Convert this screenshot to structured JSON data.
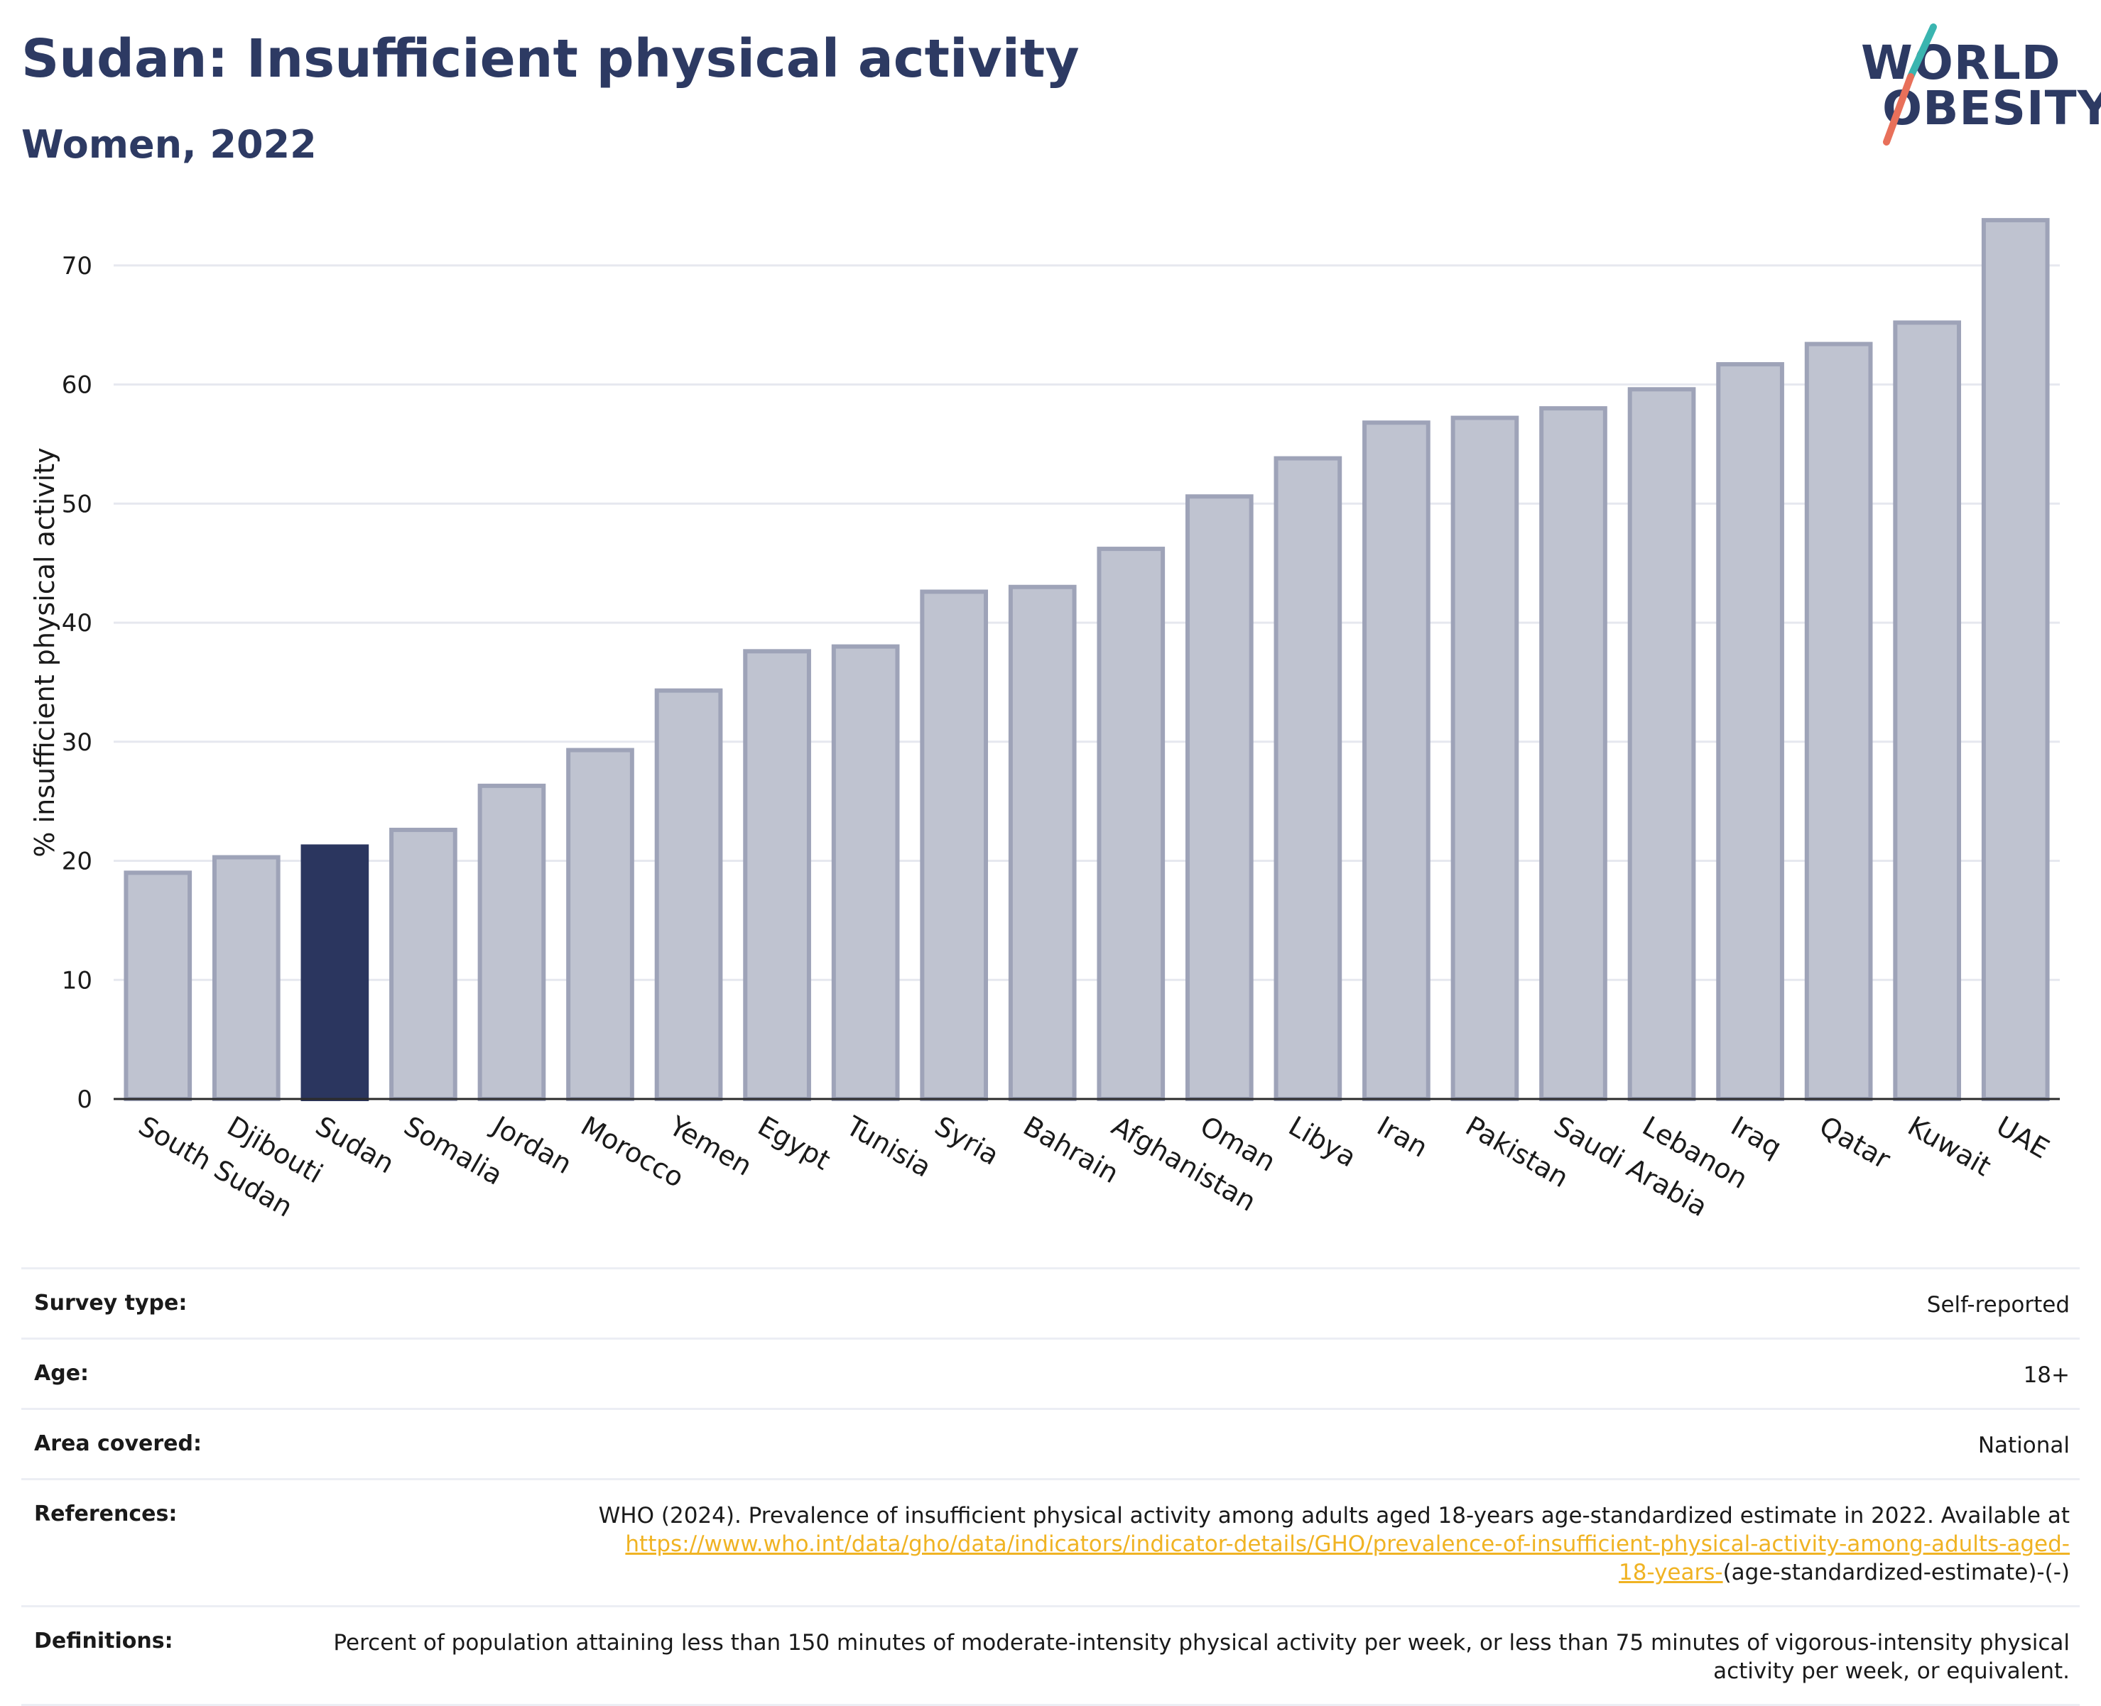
{
  "title": "Sudan: Insufficient physical activity",
  "subtitle": "Women, 2022",
  "logo": {
    "line1": "WORLD",
    "line2": "OBESITY"
  },
  "colors": {
    "highlight": "#2b365f",
    "bar": "#bfc3d0",
    "bar_border": "#9ea3b8",
    "accent_teal": "#3ab5b0",
    "accent_coral": "#e8705a",
    "link": "#f0b323"
  },
  "chart_data": {
    "type": "bar",
    "ylabel": "% insufficient physical activity",
    "ylim": [
      0,
      75
    ],
    "yticks": [
      0,
      10,
      20,
      30,
      40,
      50,
      60,
      70
    ],
    "grid": true,
    "highlight": "Sudan",
    "categories": [
      "South Sudan",
      "Djibouti",
      "Sudan",
      "Somalia",
      "Jordan",
      "Morocco",
      "Yemen",
      "Egypt",
      "Tunisia",
      "Syria",
      "Bahrain",
      "Afghanistan",
      "Oman",
      "Libya",
      "Iran",
      "Pakistan",
      "Saudi Arabia",
      "Lebanon",
      "Iraq",
      "Qatar",
      "Kuwait",
      "UAE"
    ],
    "values": [
      19.0,
      20.3,
      21.2,
      22.6,
      26.3,
      29.3,
      34.3,
      37.6,
      38.0,
      42.6,
      43.0,
      46.2,
      50.6,
      53.8,
      56.8,
      57.2,
      58.0,
      59.6,
      61.7,
      63.4,
      65.2,
      73.8
    ]
  },
  "info": {
    "survey_type_label": "Survey type:",
    "survey_type_value": "Self-reported",
    "age_label": "Age:",
    "age_value": "18+",
    "area_label": "Area covered:",
    "area_value": "National",
    "references_label": "References:",
    "references_text": "WHO (2024). Prevalence of insufficient physical activity among adults aged 18-years age-standardized estimate in 2022. Available at",
    "references_link_a": "https://www.who.int/data/gho/data/indicators/indicator-details/GHO/prevalence-of-insufficient-physical-activity-among-adults-aged-",
    "references_link_b": "18-years-",
    "references_suffix": "(age-standardized-estimate)-(-)",
    "definitions_label": "Definitions:",
    "definitions_text": "Percent of population attaining less than 150 minutes of moderate-intensity physical activity per week, or less than 75 minutes of vigorous-intensity physical activity per week, or equivalent."
  }
}
